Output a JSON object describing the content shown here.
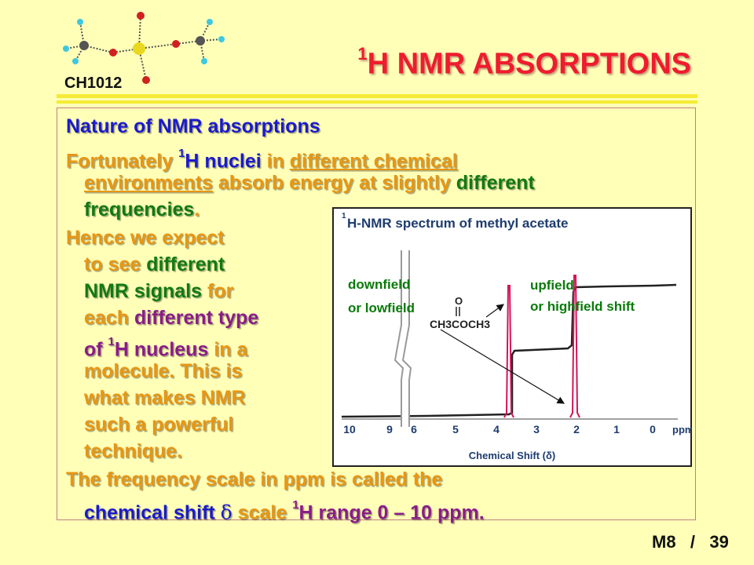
{
  "header": {
    "course_code": "CH1012",
    "title_sup": "1",
    "title_text": "H NMR ABSORPTIONS"
  },
  "body": {
    "heading": "Nature of NMR absorptions",
    "p1": {
      "a": "Fortunately ",
      "sup": "1",
      "b": "H nuclei",
      "c": " in ",
      "d": "different chemical",
      "e": "environments",
      "f": " absorb energy at slightly ",
      "g": "different",
      "h": "frequencies",
      "i": "."
    },
    "p2": {
      "l1": "Hence we expect",
      "l2a": "to see ",
      "l2b": "different",
      "l3a": "NMR signals",
      "l3b": " for",
      "l4a": "each ",
      "l4b": "different type",
      "l5a": "of ",
      "l5sup": "1",
      "l5b": "H nucleus",
      "l5c": " in a",
      "l6": "molecule. This is",
      "l7": "what makes NMR",
      "l8": "such a powerful",
      "l9": "technique."
    },
    "p3": {
      "l1": "The frequency scale in ppm  is called the",
      "l2a": "chemical shift ",
      "l2sym": "δ",
      "l2b": " scale ",
      "l2sup": "1",
      "l2c": "H range 0 – 10 ppm."
    }
  },
  "spectrum": {
    "title_sup": "1",
    "title": "H-NMR spectrum of methyl acetate",
    "downfield_1": "downfield",
    "downfield_2": "or lowfield",
    "upfield_1": "upfield",
    "upfield_2": "or highfield shift",
    "structure_o": "O",
    "structure_formula": "CH3COCH3",
    "ticks": [
      "10",
      "9",
      "6",
      "5",
      "4",
      "3",
      "2",
      "1",
      "0"
    ],
    "unit": "ppm",
    "xlabel": "Chemical Shift (δ)",
    "peaks_ppm": [
      3.7,
      2.0
    ],
    "colors": {
      "peak": "#D2145A",
      "curve": "#222222",
      "annot": "#0A7A0A"
    }
  },
  "footer": {
    "module": "M8",
    "separator": "/",
    "page": "39"
  }
}
